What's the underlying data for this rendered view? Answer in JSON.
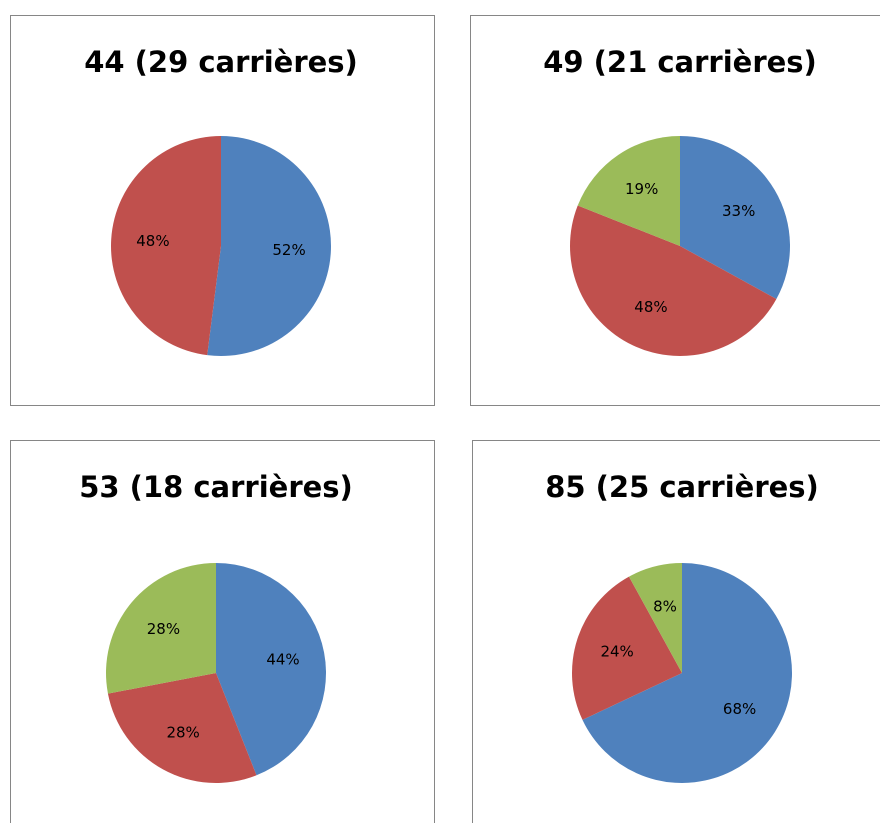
{
  "chart_data": [
    {
      "type": "pie",
      "title": "44 (29 carrières)",
      "values": [
        52,
        48
      ],
      "value_labels": [
        "52%",
        "48%"
      ],
      "colors": [
        "#4f81bd",
        "#c0504d"
      ]
    },
    {
      "type": "pie",
      "title": "49 (21 carrières)",
      "values": [
        33,
        48,
        19
      ],
      "value_labels": [
        "33%",
        "48%",
        "19%"
      ],
      "colors": [
        "#4f81bd",
        "#c0504d",
        "#9bbb59"
      ]
    },
    {
      "type": "pie",
      "title": "53 (18 carrières)",
      "values": [
        44,
        28,
        28
      ],
      "value_labels": [
        "44%",
        "28%",
        "28%"
      ],
      "colors": [
        "#4f81bd",
        "#c0504d",
        "#9bbb59"
      ]
    },
    {
      "type": "pie",
      "title": "85 (25 carrières)",
      "values": [
        68,
        24,
        8
      ],
      "value_labels": [
        "68%",
        "24%",
        "8%"
      ],
      "colors": [
        "#4f81bd",
        "#c0504d",
        "#9bbb59"
      ]
    }
  ]
}
